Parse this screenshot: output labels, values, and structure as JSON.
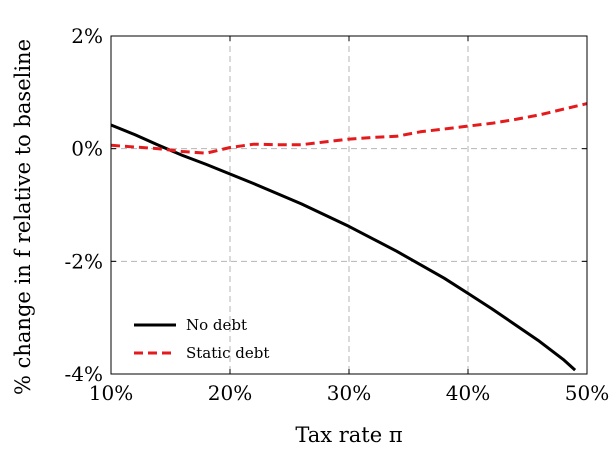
{
  "chart_data": {
    "type": "line",
    "xlabel": "Tax rate π",
    "ylabel": "% change in f relative to baseline",
    "xlim": [
      10,
      50
    ],
    "ylim": [
      -4,
      2
    ],
    "x_ticks": [
      10,
      20,
      30,
      40,
      50
    ],
    "x_tick_labels": [
      "10%",
      "20%",
      "30%",
      "40%",
      "50%"
    ],
    "y_ticks": [
      2,
      0,
      -2,
      -4
    ],
    "y_tick_labels": [
      "2%",
      "0%",
      "-2%",
      "-4%"
    ],
    "grid": true,
    "legend_position": "bottom-left",
    "series": [
      {
        "name": "No debt",
        "color": "#000000",
        "dash": "solid",
        "x": [
          10,
          12,
          14,
          16,
          18,
          20,
          22,
          24,
          26,
          28,
          30,
          32,
          34,
          36,
          38,
          40,
          42,
          44,
          46,
          48,
          49
        ],
        "y": [
          0.42,
          0.25,
          0.06,
          -0.12,
          -0.28,
          -0.45,
          -0.62,
          -0.8,
          -0.98,
          -1.18,
          -1.38,
          -1.6,
          -1.82,
          -2.06,
          -2.3,
          -2.57,
          -2.84,
          -3.13,
          -3.42,
          -3.74,
          -3.93
        ]
      },
      {
        "name": "Static debt",
        "color": "#e41a1c",
        "dash": "dashed",
        "x": [
          10,
          12,
          14,
          16,
          18,
          20,
          22,
          24,
          26,
          28,
          30,
          32,
          34,
          36,
          38,
          40,
          42,
          44,
          46,
          48,
          50
        ],
        "y": [
          0.06,
          0.03,
          0.0,
          -0.05,
          -0.08,
          0.02,
          0.08,
          0.07,
          0.07,
          0.12,
          0.17,
          0.2,
          0.22,
          0.3,
          0.35,
          0.4,
          0.45,
          0.52,
          0.6,
          0.7,
          0.8
        ]
      }
    ]
  }
}
